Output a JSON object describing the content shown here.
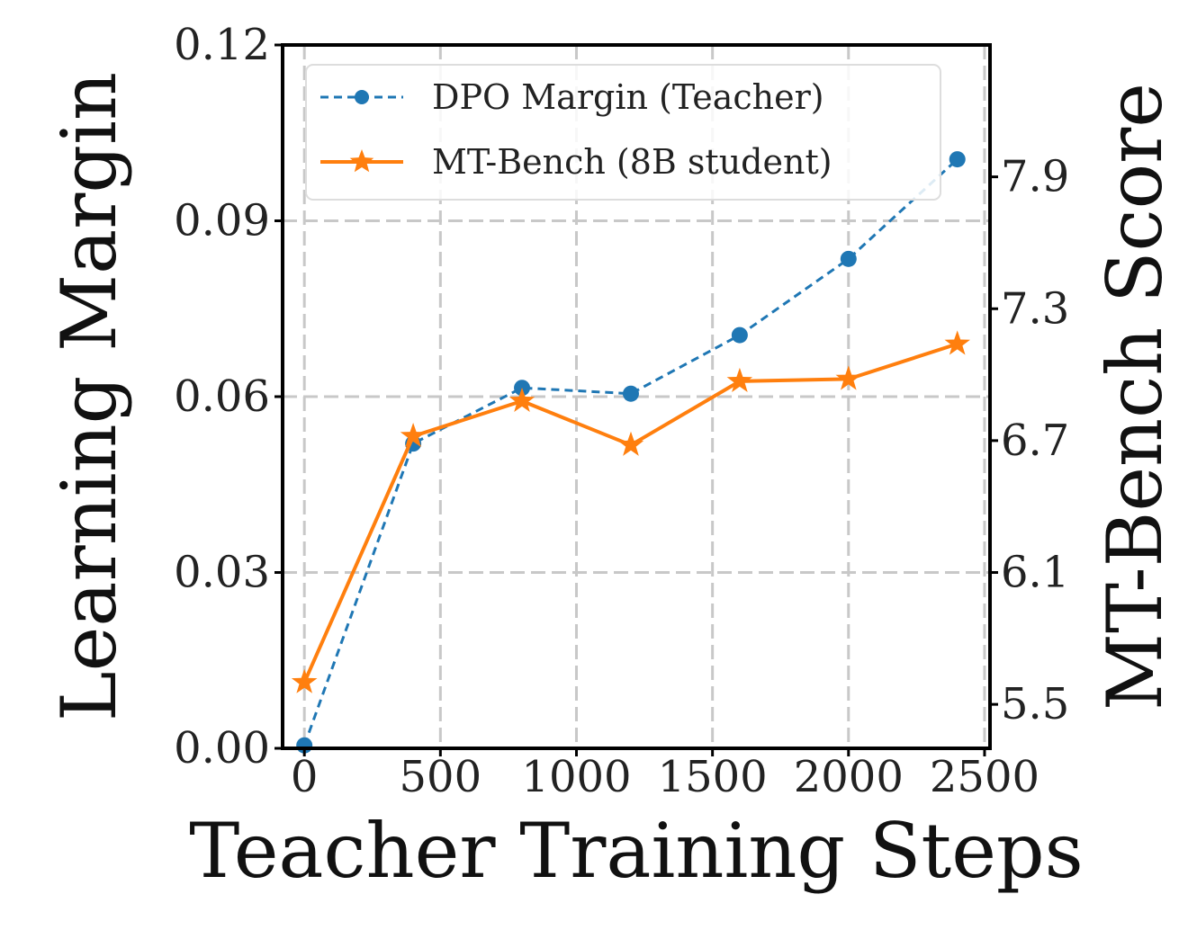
{
  "chart_data": {
    "type": "line",
    "xlabel": "Teacher Training Steps",
    "ylabel_left": "Learning Margin",
    "ylabel_right": "MT-Bench Score",
    "x": [
      0,
      400,
      800,
      1200,
      1600,
      2000,
      2400
    ],
    "x_ticks": [
      0,
      500,
      1000,
      1500,
      2000,
      2500
    ],
    "x_tick_labels": [
      "0",
      "500",
      "1000",
      "1500",
      "2000",
      "2500"
    ],
    "xlim": [
      -80,
      2520
    ],
    "y_left_ticks": [
      0.0,
      0.03,
      0.06,
      0.09,
      0.12
    ],
    "y_left_tick_labels": [
      "0.00",
      "0.03",
      "0.06",
      "0.09",
      "0.12"
    ],
    "ylim_left": [
      0.0,
      0.12
    ],
    "y_right_ticks": [
      5.5,
      6.1,
      6.7,
      7.3,
      7.9
    ],
    "y_right_tick_labels": [
      "5.5",
      "6.1",
      "6.7",
      "7.3",
      "7.9"
    ],
    "ylim_right": [
      5.3,
      8.5
    ],
    "grid": true,
    "legend_position": "top-left",
    "series": [
      {
        "name": "DPO Margin (Teacher)",
        "axis": "left",
        "color": "#1f77b4",
        "style": "dashed",
        "marker": "circle",
        "values": [
          0.0005,
          0.052,
          0.0615,
          0.0605,
          0.0705,
          0.0835,
          0.1005
        ]
      },
      {
        "name": "MT-Bench (8B student)",
        "axis": "right",
        "color": "#ff7f0e",
        "style": "solid",
        "marker": "star",
        "values": [
          5.6,
          6.72,
          6.88,
          6.68,
          6.97,
          6.98,
          7.14
        ]
      }
    ]
  }
}
